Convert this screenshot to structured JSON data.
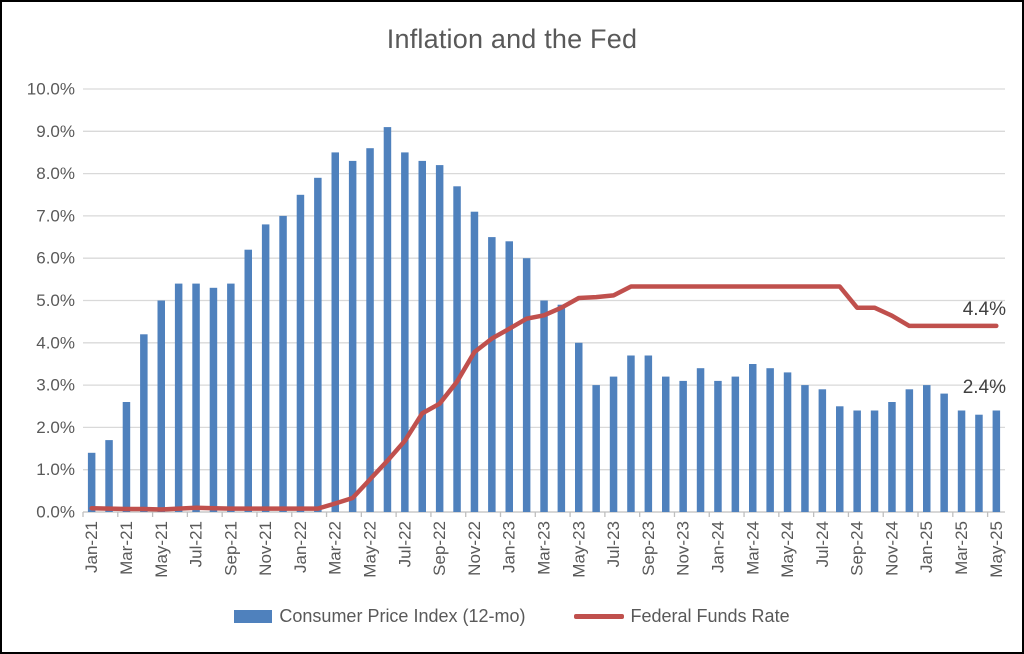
{
  "chart_data": {
    "type": "combo",
    "title": "Inflation and the Fed",
    "categories": [
      "Jan-21",
      "Feb-21",
      "Mar-21",
      "Apr-21",
      "May-21",
      "Jun-21",
      "Jul-21",
      "Aug-21",
      "Sep-21",
      "Oct-21",
      "Nov-21",
      "Dec-21",
      "Jan-22",
      "Feb-22",
      "Mar-22",
      "Apr-22",
      "May-22",
      "Jun-22",
      "Jul-22",
      "Aug-22",
      "Sep-22",
      "Oct-22",
      "Nov-22",
      "Dec-22",
      "Jan-23",
      "Feb-23",
      "Mar-23",
      "Apr-23",
      "May-23",
      "Jun-23",
      "Jul-23",
      "Aug-23",
      "Sep-23",
      "Oct-23",
      "Nov-23",
      "Dec-23",
      "Jan-24",
      "Feb-24",
      "Mar-24",
      "Apr-24",
      "May-24",
      "Jun-24",
      "Jul-24",
      "Aug-24",
      "Sep-24",
      "Oct-24",
      "Nov-24",
      "Dec-24",
      "Jan-25",
      "Feb-25",
      "Mar-25",
      "Apr-25",
      "May-25"
    ],
    "x_label_every": 2,
    "y_axis": {
      "min": 0,
      "max": 10,
      "step": 1,
      "tick_labels": [
        "0.0%",
        "1.0%",
        "2.0%",
        "3.0%",
        "4.0%",
        "5.0%",
        "6.0%",
        "7.0%",
        "8.0%",
        "9.0%",
        "10.0%"
      ]
    },
    "grid": true,
    "legend_position": "bottom",
    "series": [
      {
        "name": "Consumer Price Index (12-mo)",
        "type": "bar",
        "color": "#4F81BD",
        "end_label": "2.4%",
        "values": [
          1.4,
          1.7,
          2.6,
          4.2,
          5.0,
          5.4,
          5.4,
          5.3,
          5.4,
          6.2,
          6.8,
          7.0,
          7.5,
          7.9,
          8.5,
          8.3,
          8.6,
          9.1,
          8.5,
          8.3,
          8.2,
          7.7,
          7.1,
          6.5,
          6.4,
          6.0,
          5.0,
          4.9,
          4.0,
          3.0,
          3.2,
          3.7,
          3.7,
          3.2,
          3.1,
          3.4,
          3.1,
          3.2,
          3.5,
          3.4,
          3.3,
          3.0,
          2.9,
          2.5,
          2.4,
          2.4,
          2.6,
          2.9,
          3.0,
          2.8,
          2.4,
          2.3,
          2.4
        ]
      },
      {
        "name": "Federal Funds Rate",
        "type": "line",
        "color": "#C0504D",
        "end_label": "4.4%",
        "values": [
          0.09,
          0.08,
          0.07,
          0.07,
          0.06,
          0.08,
          0.1,
          0.09,
          0.08,
          0.08,
          0.08,
          0.08,
          0.08,
          0.08,
          0.2,
          0.33,
          0.77,
          1.21,
          1.68,
          2.33,
          2.56,
          3.08,
          3.78,
          4.1,
          4.33,
          4.57,
          4.65,
          4.83,
          5.06,
          5.08,
          5.12,
          5.33,
          5.33,
          5.33,
          5.33,
          5.33,
          5.33,
          5.33,
          5.33,
          5.33,
          5.33,
          5.33,
          5.33,
          5.33,
          4.83,
          4.83,
          4.64,
          4.4,
          4.4,
          4.4,
          4.4,
          4.4,
          4.4
        ]
      }
    ],
    "colors": {
      "gridline": "#D9D9D9",
      "axis": "#BFBFBF",
      "tick_text": "#595959",
      "data_label_text": "#404040",
      "title_text": "#595959"
    }
  }
}
